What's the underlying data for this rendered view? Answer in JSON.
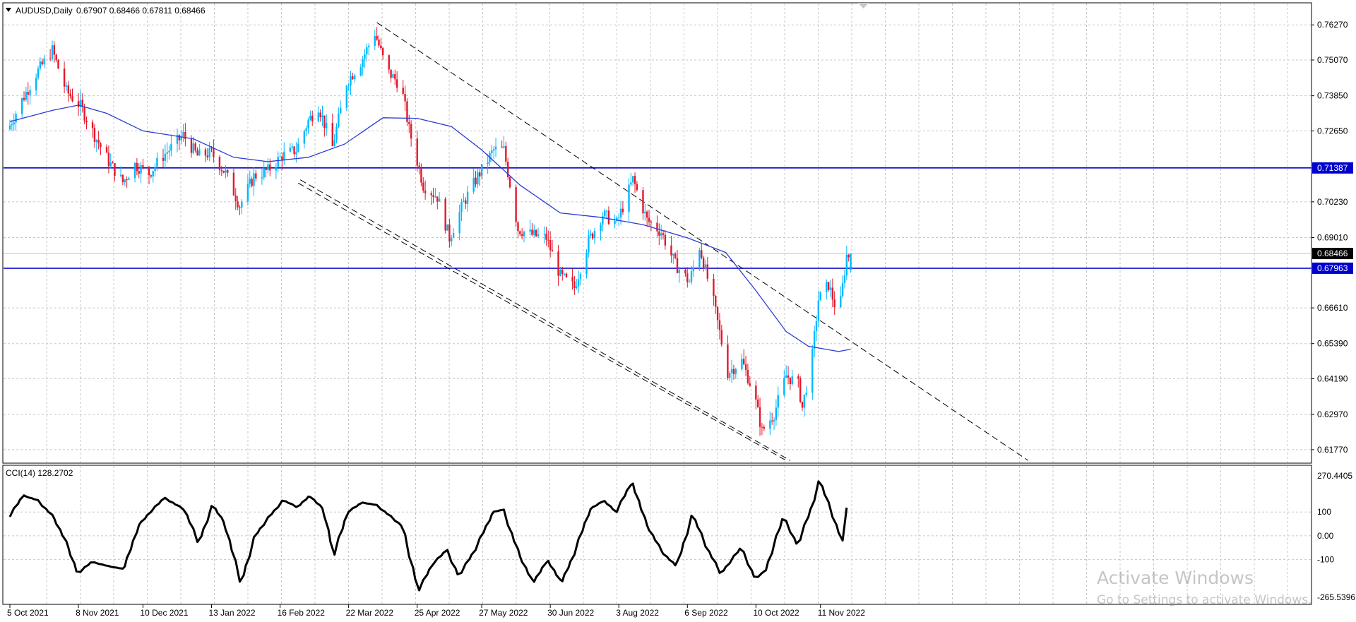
{
  "main_header": {
    "menu_icon": "triangle-down-icon",
    "symbol": "AUDUSD,Daily",
    "ohlc": "0.67907 0.68466 0.67811 0.68466"
  },
  "price_axis": {
    "labels": [
      "0.76270",
      "0.75070",
      "0.73850",
      "0.72650",
      "0.70230",
      "0.69010",
      "0.66610",
      "0.65390",
      "0.64190",
      "0.62970",
      "0.61770"
    ],
    "current_price": "0.68466",
    "line_labels": [
      "0.71387",
      "0.67963"
    ]
  },
  "indicator": {
    "header": "CCI(14) 128.2702",
    "axis_labels": [
      "270.4405",
      "100",
      "0.00",
      "-100",
      "-265.5396"
    ]
  },
  "date_axis": [
    "5 Oct 2021",
    "8 Nov 2021",
    "10 Dec 2021",
    "13 Jan 2022",
    "16 Feb 2022",
    "22 Mar 2022",
    "25 Apr 2022",
    "27 May 2022",
    "30 Jun 2022",
    "3 Aug 2022",
    "6 Sep 2022",
    "10 Oct 2022",
    "11 Nov 2022"
  ],
  "watermark": {
    "title": "Activate Windows",
    "subtitle": "Go to Settings to activate Windows."
  },
  "chart_data": {
    "type": "candlestick",
    "symbol": "AUDUSD",
    "timeframe": "Daily",
    "last_bar": {
      "open": 0.67907,
      "high": 0.68466,
      "low": 0.67811,
      "close": 0.68466
    },
    "ylim": [
      0.6131,
      0.7695
    ],
    "x_range": [
      "2021-10-05",
      "2022-11-26"
    ],
    "grid": true,
    "up_color": "#00b7ff",
    "down_color": "#e5172a",
    "ma_color": "#2a3bd3",
    "price_path": [
      [
        "2021-10-05",
        0.727
      ],
      [
        "2021-10-12",
        0.737
      ],
      [
        "2021-10-19",
        0.746
      ],
      [
        "2021-10-27",
        0.754
      ],
      [
        "2021-11-03",
        0.74
      ],
      [
        "2021-11-10",
        0.735
      ],
      [
        "2021-11-17",
        0.725
      ],
      [
        "2021-11-24",
        0.716
      ],
      [
        "2021-12-01",
        0.709
      ],
      [
        "2021-12-07",
        0.715
      ],
      [
        "2021-12-14",
        0.712
      ],
      [
        "2021-12-21",
        0.718
      ],
      [
        "2021-12-31",
        0.725
      ],
      [
        "2022-01-07",
        0.718
      ],
      [
        "2022-01-14",
        0.719
      ],
      [
        "2022-01-21",
        0.712
      ],
      [
        "2022-01-28",
        0.701
      ],
      [
        "2022-02-04",
        0.711
      ],
      [
        "2022-02-11",
        0.713
      ],
      [
        "2022-02-18",
        0.718
      ],
      [
        "2022-02-25",
        0.72
      ],
      [
        "2022-03-03",
        0.73
      ],
      [
        "2022-03-08",
        0.735
      ],
      [
        "2022-03-15",
        0.721
      ],
      [
        "2022-03-22",
        0.743
      ],
      [
        "2022-03-29",
        0.75
      ],
      [
        "2022-04-05",
        0.76
      ],
      [
        "2022-04-11",
        0.747
      ],
      [
        "2022-04-18",
        0.742
      ],
      [
        "2022-04-22",
        0.727
      ],
      [
        "2022-04-29",
        0.708
      ],
      [
        "2022-05-06",
        0.704
      ],
      [
        "2022-05-12",
        0.69
      ],
      [
        "2022-05-19",
        0.702
      ],
      [
        "2022-05-26",
        0.711
      ],
      [
        "2022-06-03",
        0.72
      ],
      [
        "2022-06-08",
        0.72
      ],
      [
        "2022-06-15",
        0.693
      ],
      [
        "2022-06-22",
        0.691
      ],
      [
        "2022-06-29",
        0.69
      ],
      [
        "2022-07-06",
        0.677
      ],
      [
        "2022-07-13",
        0.673
      ],
      [
        "2022-07-20",
        0.689
      ],
      [
        "2022-07-27",
        0.698
      ],
      [
        "2022-08-03",
        0.695
      ],
      [
        "2022-08-11",
        0.71
      ],
      [
        "2022-08-18",
        0.696
      ],
      [
        "2022-08-25",
        0.692
      ],
      [
        "2022-09-01",
        0.681
      ],
      [
        "2022-09-08",
        0.675
      ],
      [
        "2022-09-13",
        0.687
      ],
      [
        "2022-09-20",
        0.668
      ],
      [
        "2022-09-27",
        0.644
      ],
      [
        "2022-10-04",
        0.648
      ],
      [
        "2022-10-10",
        0.637
      ],
      [
        "2022-10-14",
        0.624
      ],
      [
        "2022-10-20",
        0.63
      ],
      [
        "2022-10-26",
        0.643
      ],
      [
        "2022-11-01",
        0.64
      ],
      [
        "2022-11-03",
        0.632
      ],
      [
        "2022-11-08",
        0.65
      ],
      [
        "2022-11-11",
        0.669
      ],
      [
        "2022-11-16",
        0.674
      ],
      [
        "2022-11-21",
        0.663
      ],
      [
        "2022-11-25",
        0.684
      ]
    ],
    "moving_average": [
      [
        "2021-10-05",
        0.7297
      ],
      [
        "2021-10-26",
        0.7335
      ],
      [
        "2021-11-08",
        0.7353
      ],
      [
        "2021-11-22",
        0.7325
      ],
      [
        "2021-12-10",
        0.7265
      ],
      [
        "2022-01-04",
        0.7238
      ],
      [
        "2022-01-24",
        0.7175
      ],
      [
        "2022-02-10",
        0.716
      ],
      [
        "2022-03-02",
        0.7175
      ],
      [
        "2022-03-20",
        0.722
      ],
      [
        "2022-04-08",
        0.731
      ],
      [
        "2022-04-25",
        0.7308
      ],
      [
        "2022-05-12",
        0.728
      ],
      [
        "2022-05-27",
        0.72
      ],
      [
        "2022-06-15",
        0.708
      ],
      [
        "2022-07-05",
        0.6985
      ],
      [
        "2022-07-25",
        0.697
      ],
      [
        "2022-08-15",
        0.6945
      ],
      [
        "2022-09-06",
        0.69
      ],
      [
        "2022-09-25",
        0.685
      ],
      [
        "2022-10-10",
        0.672
      ],
      [
        "2022-10-25",
        0.658
      ],
      [
        "2022-11-05",
        0.653
      ],
      [
        "2022-11-20",
        0.6512
      ],
      [
        "2022-11-26",
        0.652
      ]
    ],
    "horizontal_lines": [
      {
        "name": "resistance",
        "value": 0.71387,
        "color": "#0000cc"
      },
      {
        "name": "support",
        "value": 0.67963,
        "color": "#0000cc"
      },
      {
        "name": "current-price",
        "value": 0.68466,
        "color": "#c0c0c0"
      }
    ],
    "trendlines": [
      {
        "name": "upper-channel",
        "style": "dashed",
        "from": [
          "2022-04-05",
          0.7635
        ],
        "to": [
          "2023-02-22",
          0.614
        ]
      },
      {
        "name": "lower-channel-a",
        "style": "dashed",
        "from": [
          "2022-02-25",
          0.7087
        ],
        "to": [
          "2022-10-25",
          0.614
        ]
      },
      {
        "name": "lower-channel-b",
        "style": "dashed",
        "from": [
          "2022-02-26",
          0.7098
        ],
        "to": [
          "2022-10-27",
          0.614
        ]
      }
    ],
    "cci": {
      "period": 14,
      "last_value": 128.2702,
      "ylim": [
        -265.5396,
        270.4405
      ],
      "reference_levels": [
        100,
        0,
        -100
      ],
      "path": [
        [
          "2021-10-05",
          80
        ],
        [
          "2021-10-12",
          170
        ],
        [
          "2021-10-19",
          150
        ],
        [
          "2021-10-27",
          80
        ],
        [
          "2021-11-03",
          -40
        ],
        [
          "2021-11-08",
          -160
        ],
        [
          "2021-11-15",
          -110
        ],
        [
          "2021-11-24",
          -130
        ],
        [
          "2021-12-01",
          -140
        ],
        [
          "2021-12-08",
          40
        ],
        [
          "2021-12-14",
          100
        ],
        [
          "2021-12-21",
          160
        ],
        [
          "2021-12-31",
          110
        ],
        [
          "2022-01-07",
          -30
        ],
        [
          "2022-01-14",
          130
        ],
        [
          "2022-01-20",
          50
        ],
        [
          "2022-01-28",
          -200
        ],
        [
          "2022-02-04",
          0
        ],
        [
          "2022-02-11",
          80
        ],
        [
          "2022-02-18",
          150
        ],
        [
          "2022-02-25",
          120
        ],
        [
          "2022-03-03",
          170
        ],
        [
          "2022-03-10",
          110
        ],
        [
          "2022-03-15",
          -80
        ],
        [
          "2022-03-22",
          100
        ],
        [
          "2022-03-29",
          140
        ],
        [
          "2022-04-05",
          130
        ],
        [
          "2022-04-11",
          90
        ],
        [
          "2022-04-18",
          40
        ],
        [
          "2022-04-26",
          -230
        ],
        [
          "2022-05-03",
          -120
        ],
        [
          "2022-05-10",
          -60
        ],
        [
          "2022-05-16",
          -170
        ],
        [
          "2022-05-24",
          -60
        ],
        [
          "2022-06-02",
          100
        ],
        [
          "2022-06-07",
          110
        ],
        [
          "2022-06-15",
          -80
        ],
        [
          "2022-06-22",
          -200
        ],
        [
          "2022-06-29",
          -100
        ],
        [
          "2022-07-06",
          -200
        ],
        [
          "2022-07-12",
          -80
        ],
        [
          "2022-07-20",
          110
        ],
        [
          "2022-07-27",
          150
        ],
        [
          "2022-08-02",
          100
        ],
        [
          "2022-08-10",
          230
        ],
        [
          "2022-08-17",
          50
        ],
        [
          "2022-08-25",
          -70
        ],
        [
          "2022-09-01",
          -130
        ],
        [
          "2022-09-09",
          90
        ],
        [
          "2022-09-16",
          -50
        ],
        [
          "2022-09-23",
          -160
        ],
        [
          "2022-10-03",
          -50
        ],
        [
          "2022-10-10",
          -180
        ],
        [
          "2022-10-15",
          -150
        ],
        [
          "2022-10-24",
          80
        ],
        [
          "2022-10-31",
          -40
        ],
        [
          "2022-11-07",
          120
        ],
        [
          "2022-11-11",
          235
        ],
        [
          "2022-11-16",
          120
        ],
        [
          "2022-11-22",
          -20
        ],
        [
          "2022-11-25",
          128
        ]
      ]
    }
  }
}
